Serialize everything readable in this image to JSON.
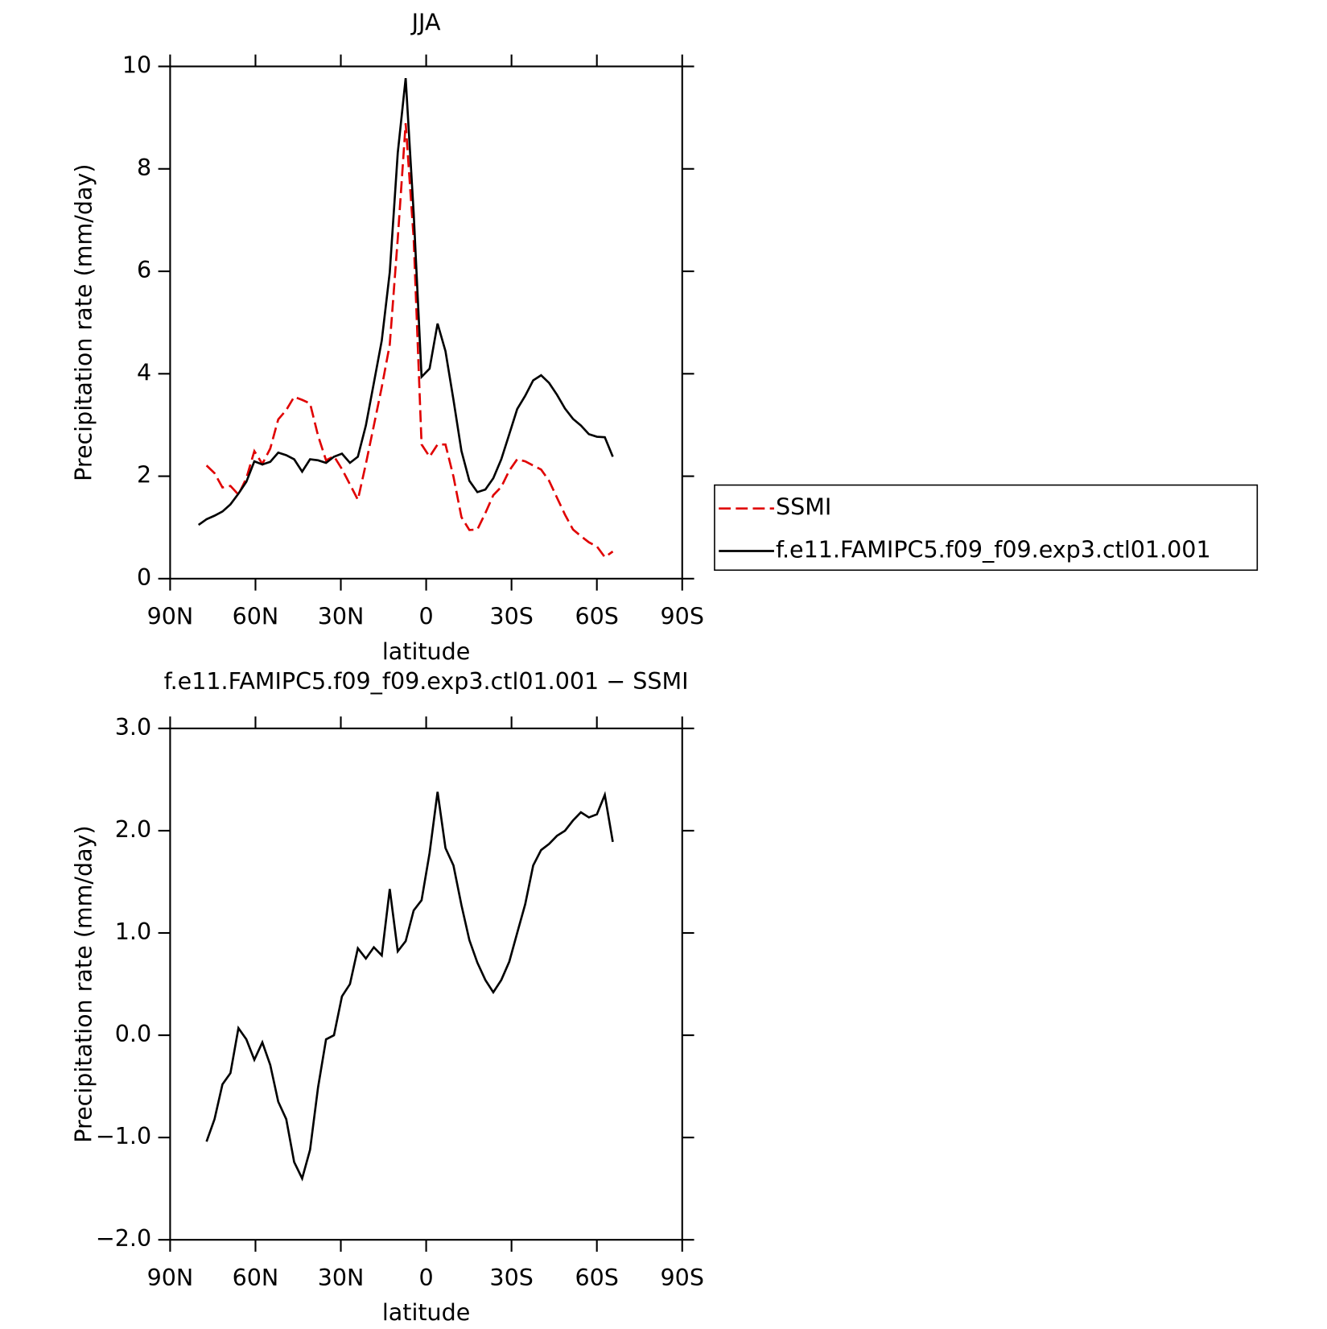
{
  "chart_data": [
    {
      "type": "line",
      "title": "JJA",
      "xlabel": "latitude",
      "ylabel": "Precipitation rate (mm/day)",
      "xlim": [
        90,
        -90
      ],
      "xticks": [
        {
          "value": 90,
          "label": "90N"
        },
        {
          "value": 60,
          "label": "60N"
        },
        {
          "value": 30,
          "label": "30N"
        },
        0,
        {
          "value": -30,
          "label": "30S"
        },
        {
          "value": -60,
          "label": "60S"
        },
        {
          "value": -90,
          "label": "90S"
        }
      ],
      "ylim": [
        0,
        10
      ],
      "yticks": [
        0,
        2,
        4,
        6,
        8,
        10
      ],
      "legend": "right",
      "x": [
        80.0,
        77.2,
        74.4,
        71.6,
        68.8,
        66.0,
        63.2,
        60.4,
        57.6,
        54.8,
        52.0,
        49.2,
        46.4,
        43.6,
        40.8,
        38.0,
        35.2,
        32.4,
        29.6,
        26.8,
        24.0,
        21.2,
        18.4,
        15.6,
        12.8,
        10.0,
        7.2,
        4.4,
        1.6,
        -1.2,
        -4.0,
        -6.8,
        -9.6,
        -12.4,
        -15.2,
        -18.0,
        -20.8,
        -23.6,
        -26.4,
        -29.2,
        -32.0,
        -34.8,
        -37.6,
        -40.4,
        -43.2,
        -46.0,
        -48.8,
        -51.6,
        -54.4,
        -57.2,
        -60.0,
        -62.8,
        -65.6
      ],
      "series": [
        {
          "name": "SSMI",
          "color": "#e00000",
          "dashed": true,
          "values": [
            null,
            2.21,
            2.06,
            1.78,
            1.81,
            1.64,
            1.96,
            2.49,
            2.24,
            2.54,
            3.11,
            3.29,
            3.55,
            3.49,
            3.42,
            2.79,
            2.31,
            2.39,
            2.14,
            1.84,
            1.54,
            2.24,
            2.99,
            3.74,
            4.57,
            6.64,
            8.89,
            6.64,
            2.62,
            2.38,
            2.62,
            2.62,
            1.99,
            1.2,
            0.95,
            0.96,
            1.28,
            1.63,
            1.79,
            2.11,
            2.33,
            2.29,
            2.21,
            2.13,
            1.91,
            1.58,
            1.25,
            0.96,
            0.83,
            0.71,
            0.63,
            0.42,
            0.53
          ]
        },
        {
          "name": "f.e11.FAMIPC5.f09_f09.exp3.ctl01.001",
          "color": "#000000",
          "dashed": false,
          "values": [
            1.05,
            1.16,
            1.23,
            1.31,
            1.45,
            1.66,
            1.89,
            2.29,
            2.23,
            2.28,
            2.46,
            2.41,
            2.33,
            2.09,
            2.33,
            2.31,
            2.26,
            2.38,
            2.44,
            2.26,
            2.38,
            2.99,
            3.82,
            4.65,
            5.98,
            8.31,
            9.77,
            7.14,
            3.94,
            4.1,
            4.98,
            4.44,
            3.49,
            2.49,
            1.91,
            1.69,
            1.74,
            1.96,
            2.33,
            2.82,
            3.31,
            3.57,
            3.87,
            3.97,
            3.82,
            3.59,
            3.32,
            3.12,
            2.99,
            2.82,
            2.77,
            2.76,
            2.38
          ]
        }
      ]
    },
    {
      "type": "line",
      "title": "f.e11.FAMIPC5.f09_f09.exp3.ctl01.001 − SSMI",
      "xlabel": "latitude",
      "ylabel": "Precipitation rate (mm/day)",
      "xlim": [
        90,
        -90
      ],
      "xticks": [
        {
          "value": 90,
          "label": "90N"
        },
        {
          "value": 60,
          "label": "60N"
        },
        {
          "value": 30,
          "label": "30N"
        },
        0,
        {
          "value": -30,
          "label": "30S"
        },
        {
          "value": -60,
          "label": "60S"
        },
        {
          "value": -90,
          "label": "90S"
        }
      ],
      "ylim": [
        -2,
        3
      ],
      "yticks": [
        {
          "value": -2,
          "label": "−2.0"
        },
        {
          "value": -1,
          "label": "−1.0"
        },
        {
          "value": 0,
          "label": "0.0"
        },
        {
          "value": 1,
          "label": "1.0"
        },
        {
          "value": 2,
          "label": "2.0"
        },
        {
          "value": 3,
          "label": "3.0"
        }
      ],
      "x": [
        77.2,
        74.4,
        71.6,
        68.8,
        66.0,
        63.2,
        60.4,
        57.6,
        54.8,
        52.0,
        49.2,
        46.4,
        43.6,
        40.8,
        38.0,
        35.2,
        32.4,
        29.6,
        26.8,
        24.0,
        21.2,
        18.4,
        15.6,
        12.8,
        10.0,
        7.2,
        4.4,
        1.6,
        -1.2,
        -4.0,
        -6.8,
        -9.6,
        -12.4,
        -15.2,
        -18.0,
        -20.8,
        -23.6,
        -26.4,
        -29.2,
        -32.0,
        -34.8,
        -37.6,
        -40.4,
        -43.2,
        -46.0,
        -48.8,
        -51.6,
        -54.4,
        -57.2,
        -60.0,
        -62.8,
        -65.6
      ],
      "series": [
        {
          "color": "#000000",
          "dashed": false,
          "values": [
            -1.04,
            -0.82,
            -0.48,
            -0.37,
            0.07,
            -0.04,
            -0.24,
            -0.07,
            -0.29,
            -0.65,
            -0.82,
            -1.24,
            -1.4,
            -1.12,
            -0.51,
            -0.04,
            0.0,
            0.38,
            0.5,
            0.85,
            0.75,
            0.86,
            0.78,
            1.43,
            0.82,
            0.92,
            1.22,
            1.32,
            1.78,
            2.38,
            1.83,
            1.66,
            1.27,
            0.93,
            0.71,
            0.54,
            0.42,
            0.54,
            0.72,
            1.0,
            1.28,
            1.66,
            1.81,
            1.87,
            1.95,
            2.0,
            2.1,
            2.18,
            2.13,
            2.16,
            2.35,
            1.89
          ]
        }
      ]
    }
  ]
}
